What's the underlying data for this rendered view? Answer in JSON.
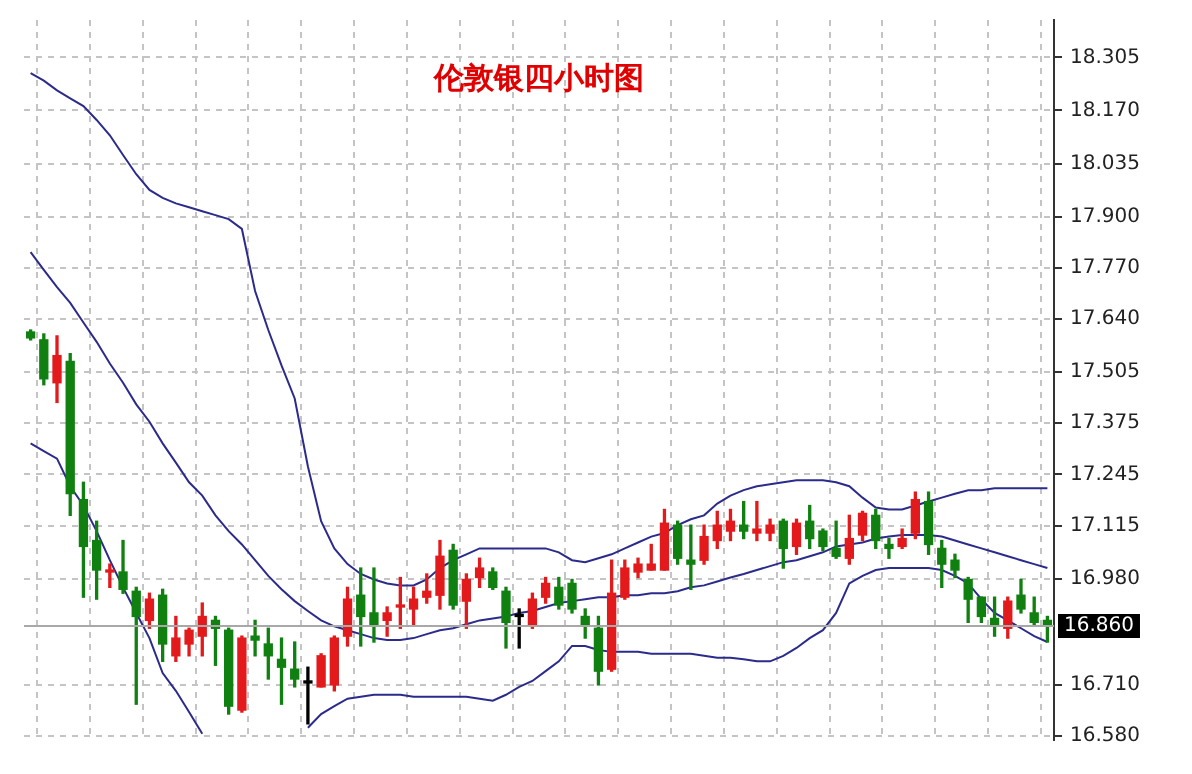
{
  "chart_data": {
    "type": "candlestick",
    "title": "伦敦银四小时图",
    "categories": [
      null,
      null,
      null,
      null,
      null,
      null,
      null,
      null,
      null,
      null,
      null,
      null,
      null,
      null,
      null,
      null,
      null,
      null,
      null,
      null,
      null,
      null,
      null,
      null,
      null,
      null,
      null,
      null,
      null,
      null,
      null,
      null,
      null,
      null,
      null,
      null,
      null,
      null,
      null,
      null,
      null,
      null,
      null,
      null,
      null,
      null,
      null,
      null,
      null,
      null,
      null,
      null,
      null,
      null,
      null,
      null,
      null,
      null,
      null,
      null,
      null,
      null,
      null,
      null,
      null,
      null,
      null,
      null,
      null,
      null,
      null,
      null,
      null,
      null,
      null,
      null,
      null,
      null
    ],
    "ohlc": [
      [
        17.607,
        17.612,
        17.587,
        17.592
      ],
      [
        17.587,
        17.602,
        17.473,
        17.488
      ],
      [
        17.478,
        17.597,
        17.428,
        17.547
      ],
      [
        17.532,
        17.552,
        17.141,
        17.196
      ],
      [
        17.181,
        17.225,
        16.933,
        17.062
      ],
      [
        17.077,
        17.126,
        16.928,
        17.002
      ],
      [
        17.002,
        17.017,
        16.958,
        16.997
      ],
      [
        16.997,
        17.077,
        16.943,
        16.953
      ],
      [
        16.948,
        16.958,
        16.661,
        16.884
      ],
      [
        16.874,
        16.943,
        16.854,
        16.928
      ],
      [
        16.938,
        16.953,
        16.77,
        16.814
      ],
      [
        16.784,
        16.884,
        16.77,
        16.829
      ],
      [
        16.814,
        16.854,
        16.784,
        16.849
      ],
      [
        16.834,
        16.918,
        16.784,
        16.884
      ],
      [
        16.874,
        16.884,
        16.76,
        16.854
      ],
      [
        16.849,
        16.854,
        16.636,
        16.656
      ],
      [
        16.646,
        16.834,
        16.641,
        16.829
      ],
      [
        16.834,
        16.874,
        16.784,
        16.824
      ],
      [
        16.814,
        16.854,
        16.725,
        16.784
      ],
      [
        16.775,
        16.829,
        16.661,
        16.755
      ],
      [
        16.75,
        16.819,
        16.705,
        16.725
      ],
      [
        16.715,
        16.755,
        16.611,
        16.715
      ],
      [
        16.705,
        16.789,
        16.705,
        16.784
      ],
      [
        16.71,
        16.834,
        16.695,
        16.829
      ],
      [
        16.834,
        16.958,
        16.809,
        16.928
      ],
      [
        16.938,
        17.007,
        16.809,
        16.884
      ],
      [
        16.893,
        17.007,
        16.819,
        16.864
      ],
      [
        16.874,
        16.908,
        16.834,
        16.893
      ],
      [
        16.908,
        16.983,
        16.854,
        16.913
      ],
      [
        16.903,
        16.958,
        16.859,
        16.928
      ],
      [
        16.933,
        16.992,
        16.918,
        16.948
      ],
      [
        16.938,
        17.077,
        16.903,
        17.037
      ],
      [
        17.052,
        17.067,
        16.903,
        16.913
      ],
      [
        16.923,
        16.992,
        16.854,
        16.978
      ],
      [
        16.983,
        17.032,
        16.958,
        17.007
      ],
      [
        16.997,
        17.007,
        16.953,
        16.958
      ],
      [
        16.948,
        16.958,
        16.804,
        16.869
      ],
      [
        16.884,
        16.903,
        16.804,
        16.884
      ],
      [
        16.864,
        16.943,
        16.854,
        16.928
      ],
      [
        16.933,
        16.983,
        16.918,
        16.968
      ],
      [
        16.958,
        16.983,
        16.903,
        16.913
      ],
      [
        16.968,
        16.978,
        16.893,
        16.903
      ],
      [
        16.884,
        16.903,
        16.829,
        16.864
      ],
      [
        16.854,
        16.884,
        16.71,
        16.745
      ],
      [
        16.75,
        17.027,
        16.745,
        16.943
      ],
      [
        16.933,
        17.027,
        16.928,
        17.007
      ],
      [
        16.997,
        17.032,
        16.983,
        17.017
      ],
      [
        17.002,
        17.067,
        17.002,
        17.017
      ],
      [
        17.002,
        17.156,
        17.002,
        17.121
      ],
      [
        17.116,
        17.126,
        17.017,
        17.032
      ],
      [
        17.027,
        17.116,
        16.953,
        17.017
      ],
      [
        17.027,
        17.116,
        17.017,
        17.087
      ],
      [
        17.077,
        17.151,
        17.057,
        17.116
      ],
      [
        17.101,
        17.156,
        17.077,
        17.126
      ],
      [
        17.116,
        17.176,
        17.082,
        17.101
      ],
      [
        17.096,
        17.176,
        17.077,
        17.106
      ],
      [
        17.096,
        17.131,
        17.077,
        17.116
      ],
      [
        17.126,
        17.131,
        17.007,
        17.057
      ],
      [
        17.062,
        17.131,
        17.042,
        17.121
      ],
      [
        17.126,
        17.166,
        17.057,
        17.082
      ],
      [
        17.101,
        17.106,
        17.052,
        17.062
      ],
      [
        17.057,
        17.126,
        17.032,
        17.037
      ],
      [
        17.032,
        17.141,
        17.017,
        17.082
      ],
      [
        17.091,
        17.151,
        17.077,
        17.146
      ],
      [
        17.141,
        17.156,
        17.057,
        17.077
      ],
      [
        17.067,
        17.082,
        17.032,
        17.057
      ],
      [
        17.062,
        17.106,
        17.057,
        17.082
      ],
      [
        17.096,
        17.2,
        17.082,
        17.181
      ],
      [
        17.176,
        17.2,
        17.042,
        17.067
      ],
      [
        17.057,
        17.077,
        16.958,
        17.017
      ],
      [
        17.027,
        17.042,
        16.983,
        17.002
      ],
      [
        16.978,
        16.983,
        16.869,
        16.928
      ],
      [
        16.933,
        16.933,
        16.869,
        16.884
      ],
      [
        16.879,
        16.933,
        16.834,
        16.864
      ],
      [
        16.854,
        16.933,
        16.829,
        16.923
      ],
      [
        16.938,
        16.978,
        16.893,
        16.903
      ],
      [
        16.893,
        16.933,
        16.859,
        16.869
      ],
      [
        16.874,
        16.884,
        16.819,
        16.86
      ]
    ],
    "colors": [
      "#108010",
      "#108010",
      "#e31a1c",
      "#108010",
      "#108010",
      "#108010",
      "#e31a1c",
      "#108010",
      "#108010",
      "#e31a1c",
      "#108010",
      "#e31a1c",
      "#e31a1c",
      "#e31a1c",
      "#108010",
      "#108010",
      "#e31a1c",
      "#108010",
      "#108010",
      "#108010",
      "#108010",
      "#000000",
      "#e31a1c",
      "#e31a1c",
      "#e31a1c",
      "#108010",
      "#108010",
      "#e31a1c",
      "#e31a1c",
      "#e31a1c",
      "#e31a1c",
      "#e31a1c",
      "#108010",
      "#e31a1c",
      "#e31a1c",
      "#108010",
      "#108010",
      "#000000",
      "#e31a1c",
      "#e31a1c",
      "#108010",
      "#108010",
      "#108010",
      "#108010",
      "#e31a1c",
      "#e31a1c",
      "#e31a1c",
      "#e31a1c",
      "#e31a1c",
      "#108010",
      "#108010",
      "#e31a1c",
      "#e31a1c",
      "#e31a1c",
      "#108010",
      "#e31a1c",
      "#e31a1c",
      "#108010",
      "#e31a1c",
      "#108010",
      "#108010",
      "#108010",
      "#e31a1c",
      "#e31a1c",
      "#108010",
      "#108010",
      "#e31a1c",
      "#e31a1c",
      "#108010",
      "#108010",
      "#108010",
      "#108010",
      "#108010",
      "#108010",
      "#e31a1c",
      "#108010",
      "#108010",
      "#108010"
    ],
    "series": [
      {
        "type": "line",
        "color": "#2b2b8c",
        "values": [
          18.265,
          18.246,
          18.221,
          18.201,
          18.181,
          18.146,
          18.107,
          18.057,
          18.008,
          17.968,
          17.948,
          17.934,
          17.924,
          17.914,
          17.904,
          17.894,
          17.869,
          17.711,
          17.612,
          17.522,
          17.438,
          17.265,
          17.126,
          17.057,
          17.017,
          16.992,
          16.978,
          16.968,
          16.963,
          16.963,
          16.978,
          17.007,
          17.027,
          17.042,
          17.057,
          17.057,
          17.057,
          17.057,
          17.057,
          17.057,
          17.047,
          17.027,
          17.022,
          17.032,
          17.042,
          17.057,
          17.072,
          17.087,
          17.096,
          17.116,
          17.131,
          17.141,
          17.171,
          17.191,
          17.205,
          17.215,
          17.22,
          17.225,
          17.23,
          17.23,
          17.23,
          17.225,
          17.215,
          17.186,
          17.161,
          17.156,
          17.156,
          17.166,
          17.176,
          17.186,
          17.196,
          17.205,
          17.205,
          17.21,
          17.21,
          17.21,
          17.21,
          17.21
        ]
      },
      {
        "type": "line",
        "color": "#2b2b8c",
        "values": [
          17.81,
          17.765,
          17.721,
          17.681,
          17.631,
          17.582,
          17.527,
          17.478,
          17.423,
          17.379,
          17.324,
          17.275,
          17.225,
          17.191,
          17.141,
          17.101,
          17.067,
          17.027,
          16.987,
          16.953,
          16.923,
          16.898,
          16.874,
          16.859,
          16.849,
          16.839,
          16.829,
          16.824,
          16.824,
          16.829,
          16.839,
          16.849,
          16.854,
          16.864,
          16.874,
          16.879,
          16.884,
          16.893,
          16.898,
          16.908,
          16.918,
          16.923,
          16.928,
          16.933,
          16.933,
          16.938,
          16.938,
          16.943,
          16.943,
          16.948,
          16.958,
          16.963,
          16.973,
          16.983,
          16.992,
          17.002,
          17.012,
          17.022,
          17.027,
          17.037,
          17.047,
          17.062,
          17.067,
          17.072,
          17.082,
          17.087,
          17.091,
          17.091,
          17.091,
          17.087,
          17.077,
          17.067,
          17.057,
          17.047,
          17.037,
          17.027,
          17.017,
          17.007
        ]
      },
      {
        "type": "line",
        "color": "#2b2b8c",
        "values": [
          17.324,
          17.304,
          17.285,
          17.215,
          17.166,
          17.101,
          17.027,
          16.958,
          16.893,
          16.829,
          16.74,
          16.695,
          16.641,
          16.586,
          null,
          null,
          null,
          null,
          null,
          null,
          null,
          16.601,
          16.636,
          16.656,
          16.675,
          16.68,
          16.685,
          16.685,
          16.685,
          16.68,
          16.68,
          16.68,
          16.68,
          16.68,
          16.675,
          16.67,
          16.685,
          16.705,
          16.72,
          16.745,
          16.77,
          16.809,
          16.809,
          16.799,
          16.794,
          16.794,
          16.794,
          16.789,
          16.789,
          16.789,
          16.789,
          16.784,
          16.779,
          16.779,
          16.775,
          16.77,
          16.77,
          16.784,
          16.804,
          16.829,
          16.849,
          16.893,
          16.968,
          16.987,
          17.002,
          17.007,
          17.007,
          17.007,
          17.007,
          17.002,
          16.987,
          16.968,
          16.928,
          16.893,
          16.874,
          16.854,
          16.834,
          16.819
        ]
      }
    ],
    "ylim": [
      16.57,
      18.4
    ],
    "yticks": [
      18.305,
      {
        "value": 18.17,
        "label": "18.170"
      },
      18.035,
      {
        "value": 17.9,
        "label": "17.900"
      },
      {
        "value": 17.77,
        "label": "17.770"
      },
      {
        "value": 17.64,
        "label": "17.640"
      },
      17.505,
      17.375,
      17.245,
      17.115,
      {
        "value": 16.98,
        "label": "16.980"
      },
      {
        "value": 16.71,
        "label": "16.710"
      },
      {
        "value": 16.58,
        "label": "16.580"
      }
    ],
    "grid": true,
    "tick_labels": "y",
    "ref_lines": [
      {
        "axis": "y",
        "value": 16.86,
        "label": "16.860",
        "color": "#a8a8a8"
      }
    ]
  }
}
